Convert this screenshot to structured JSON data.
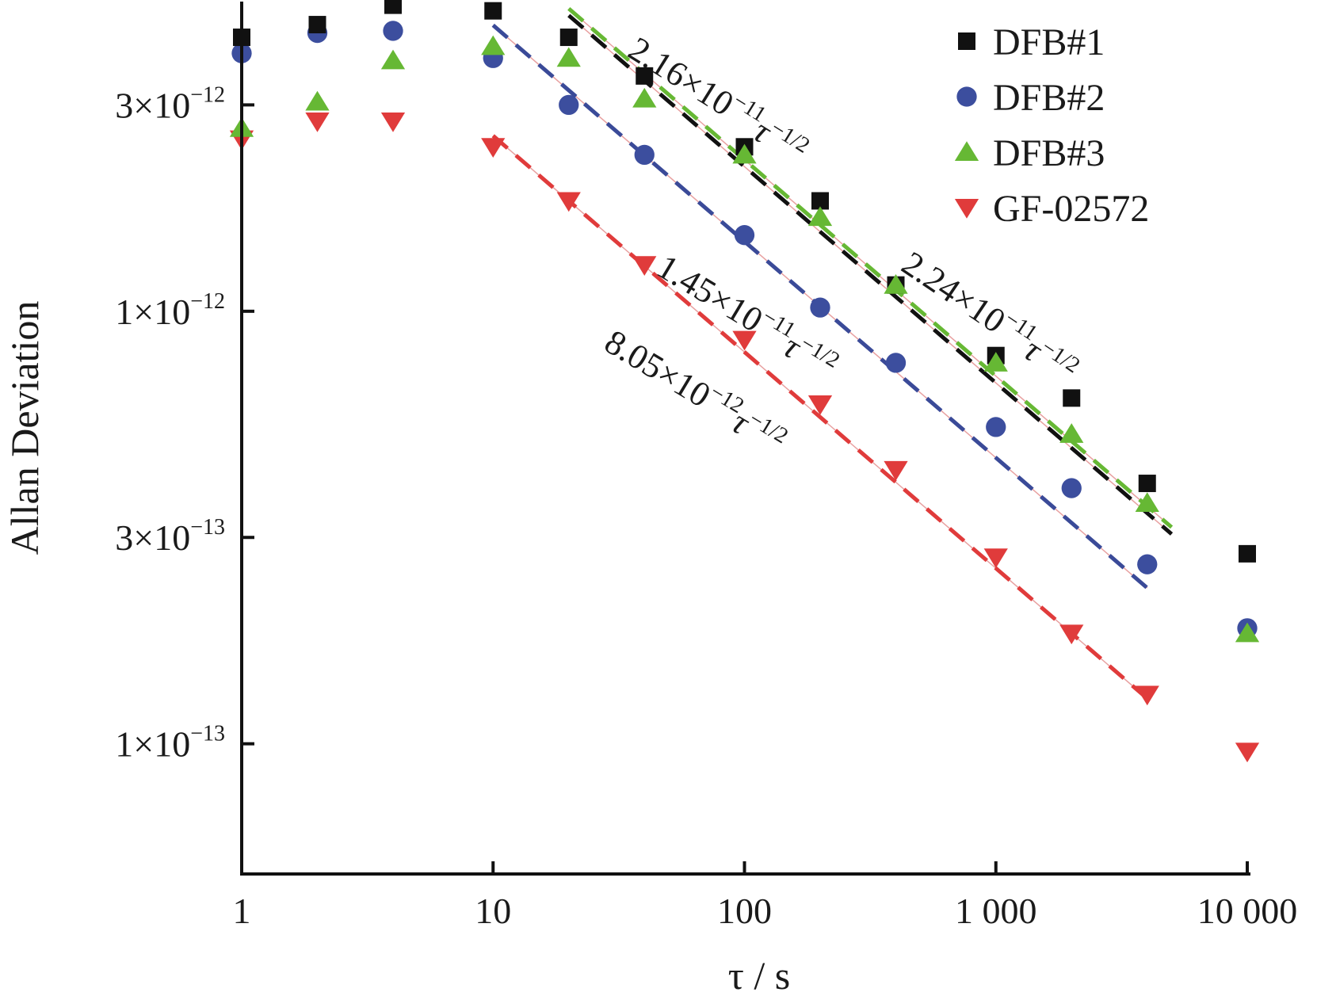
{
  "chart_data": {
    "type": "scatter",
    "title": "",
    "xlabel": "τ / s",
    "ylabel": "Allan Deviation",
    "x_scale": "log",
    "y_scale": "log",
    "xlim": [
      1,
      10000
    ],
    "ylim": [
      5e-14,
      5.2e-12
    ],
    "x_ticks": [
      {
        "value": 1,
        "label": "1"
      },
      {
        "value": 10,
        "label": "10"
      },
      {
        "value": 100,
        "label": "100"
      },
      {
        "value": 1000,
        "label": "1 000"
      },
      {
        "value": 10000,
        "label": "10 000"
      }
    ],
    "y_ticks": [
      {
        "value": 1e-13,
        "mant": "1",
        "exp": "−13"
      },
      {
        "value": 3e-13,
        "mant": "3",
        "exp": "−13"
      },
      {
        "value": 1e-12,
        "mant": "1",
        "exp": "−12"
      },
      {
        "value": 3e-12,
        "mant": "3",
        "exp": "−12"
      }
    ],
    "grid": false,
    "legend_position": "top-right",
    "series": [
      {
        "name": "DFB#1",
        "marker": "square",
        "color": "#111111",
        "line_color": "#111111",
        "x": [
          1,
          2,
          4,
          10,
          20,
          40,
          100,
          200,
          400,
          1000,
          2000,
          4000,
          10000
        ],
        "y": [
          4.3e-12,
          4.6e-12,
          5.1e-12,
          4.95e-12,
          4.3e-12,
          3.5e-12,
          2.4e-12,
          1.8e-12,
          1.15e-12,
          7.9e-13,
          6.3e-13,
          4e-13,
          2.75e-13
        ],
        "fit": {
          "coef": "2.16",
          "exp": "−11",
          "x_range": [
            20,
            5000
          ]
        }
      },
      {
        "name": "DFB#2",
        "marker": "circle",
        "color": "#3c4e9e",
        "line_color": "#3a4a98",
        "x": [
          1,
          2,
          4,
          10,
          20,
          40,
          100,
          200,
          400,
          1000,
          2000,
          4000,
          10000
        ],
        "y": [
          3.95e-12,
          4.4e-12,
          4.45e-12,
          3.85e-12,
          3e-12,
          2.3e-12,
          1.5e-12,
          1.02e-12,
          7.6e-13,
          5.4e-13,
          3.9e-13,
          2.6e-13,
          1.85e-13
        ],
        "fit": {
          "coef": "1.45",
          "exp": "−11",
          "x_range": [
            10,
            4000
          ]
        }
      },
      {
        "name": "DFB#3",
        "marker": "triangle-up",
        "color": "#66b834",
        "line_color": "#66b834",
        "x": [
          1,
          2,
          4,
          10,
          20,
          40,
          100,
          200,
          400,
          1000,
          2000,
          4000,
          10000
        ],
        "y": [
          2.65e-12,
          3.05e-12,
          3.8e-12,
          4.1e-12,
          3.85e-12,
          3.1e-12,
          2.3e-12,
          1.65e-12,
          1.15e-12,
          7.6e-13,
          5.2e-13,
          3.6e-13,
          1.8e-13
        ],
        "fit": {
          "coef": "2.24",
          "exp": "−11",
          "x_range": [
            20,
            5000
          ]
        }
      },
      {
        "name": "GF-02572",
        "marker": "triangle-down",
        "color": "#e03b3b",
        "line_color": "#e03b3b",
        "x": [
          1,
          2,
          4,
          10,
          20,
          40,
          100,
          200,
          400,
          1000,
          2000,
          4000,
          10000
        ],
        "y": [
          2.5e-12,
          2.75e-12,
          2.75e-12,
          2.4e-12,
          1.8e-12,
          1.28e-12,
          8.6e-13,
          6.1e-13,
          4.3e-13,
          2.7e-13,
          1.8e-13,
          1.3e-13,
          9.6e-14
        ],
        "fit": {
          "coef": "8.05",
          "exp": "−12",
          "x_range": [
            10,
            4000
          ]
        }
      }
    ],
    "annotations": [
      {
        "coef": "2.16",
        "exp": "−11",
        "tau_exp": "−1/2",
        "color": "#111111",
        "angle": 32
      },
      {
        "coef": "2.24",
        "exp": "−11",
        "tau_exp": "−1/2",
        "color": "#111111",
        "angle": 34
      },
      {
        "coef": "1.45",
        "exp": "−11",
        "tau_exp": "−1/2",
        "color": "#111111",
        "angle": 31
      },
      {
        "coef": "8.05",
        "exp": "−12",
        "tau_exp": "−1/2",
        "color": "#111111",
        "angle": 31
      }
    ]
  }
}
